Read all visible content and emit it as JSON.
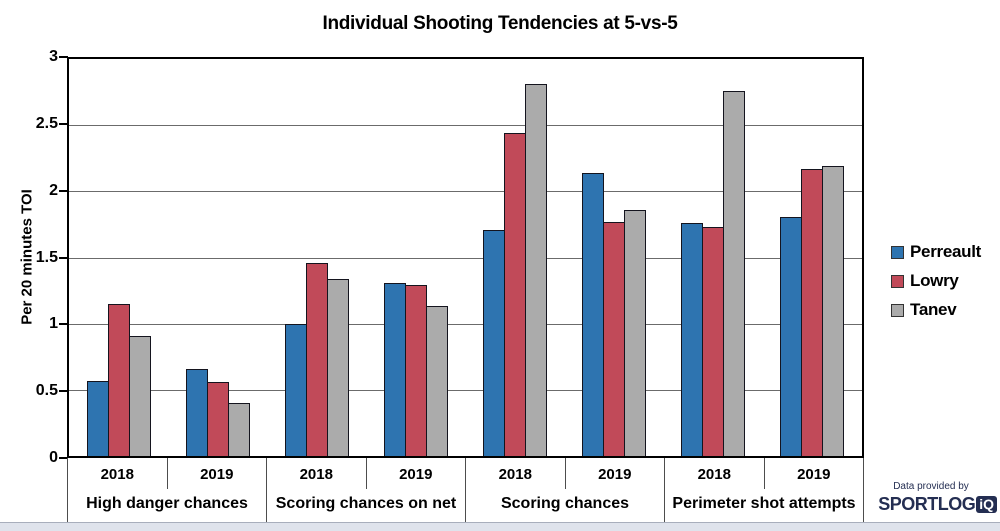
{
  "chart_data": {
    "type": "bar",
    "title": "Individual Shooting Tendencies at 5-vs-5",
    "ylabel": "Per 20 minutes TOI",
    "ylim": [
      0,
      3
    ],
    "ytick_step": 0.5,
    "grid": true,
    "legend_position": "right",
    "group_categories": [
      "High danger chances",
      "Scoring chances on net",
      "Scoring chances",
      "Perimeter shot attempts"
    ],
    "x_year_labels": [
      "2018",
      "2019",
      "2018",
      "2019",
      "2018",
      "2019",
      "2018",
      "2019"
    ],
    "series": [
      {
        "name": "Perreault",
        "color": "#2e74b0",
        "border_color": "#14141e",
        "values": [
          0.57,
          0.66,
          1.0,
          1.31,
          1.71,
          2.14,
          1.76,
          1.81
        ]
      },
      {
        "name": "Lowry",
        "color": "#c14a59",
        "border_color": "#14141e",
        "values": [
          1.15,
          0.56,
          1.46,
          1.29,
          2.44,
          1.77,
          1.73,
          2.17
        ]
      },
      {
        "name": "Tanev",
        "color": "#ababab",
        "border_color": "#14141e",
        "values": [
          0.91,
          0.4,
          1.34,
          1.13,
          2.81,
          1.86,
          2.76,
          2.19
        ]
      }
    ]
  },
  "footer": {
    "provided_by": "Data provided by",
    "brand_name": "SPORTLOG",
    "brand_suffix": "iQ",
    "brand_color": "#242e52"
  }
}
